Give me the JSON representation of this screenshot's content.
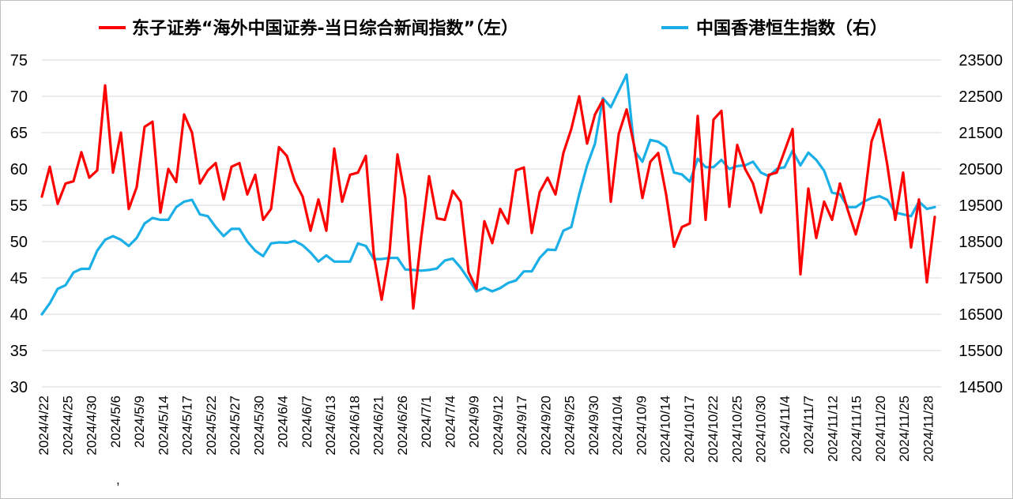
{
  "chart_data": {
    "type": "line",
    "legend_position": "top",
    "grid": "horizontal",
    "series": [
      {
        "name": "东子证券“海外中国证券-当日综合新闻指数”（左）",
        "axis": "left",
        "color": "#ff0000",
        "values": [
          56.2,
          60.3,
          55.2,
          58.0,
          58.3,
          62.3,
          58.8,
          59.8,
          71.5,
          59.5,
          65.0,
          54.5,
          57.5,
          65.8,
          66.5,
          54.0,
          60.0,
          58.2,
          67.5,
          65.0,
          58.0,
          59.8,
          60.8,
          55.8,
          60.3,
          60.8,
          56.5,
          59.2,
          53.0,
          54.5,
          63.0,
          61.8,
          58.3,
          56.2,
          51.5,
          55.8,
          51.5,
          62.8,
          55.5,
          59.2,
          59.5,
          61.8,
          48.2,
          42.0,
          48.5,
          62.0,
          56.0,
          40.8,
          50.5,
          59.0,
          53.2,
          53.0,
          57.0,
          55.5,
          45.8,
          43.5,
          52.8,
          49.8,
          54.5,
          52.5,
          59.8,
          60.2,
          51.2,
          56.8,
          58.8,
          56.5,
          62.2,
          65.5,
          70.0,
          63.5,
          67.5,
          69.5,
          55.5,
          64.8,
          68.2,
          63.0,
          56.0,
          61.0,
          62.2,
          56.5,
          49.3,
          52.0,
          52.5,
          67.3,
          53.0,
          66.8,
          68.0,
          54.8,
          63.3,
          60.0,
          58.0,
          54.0,
          59.2,
          59.5,
          62.5,
          65.5,
          45.5,
          57.3,
          50.5,
          55.5,
          53.0,
          58.0,
          54.3,
          51.0,
          55.0,
          63.8,
          66.8,
          60.5,
          53.0,
          59.5,
          49.2,
          55.8,
          44.4,
          53.4
        ]
      },
      {
        "name": "中国香港恒生指数（右）",
        "axis": "right",
        "color": "#1aafe6",
        "values": [
          16500,
          16800,
          17200,
          17300,
          17650,
          17750,
          17750,
          18250,
          18550,
          18650,
          18550,
          18380,
          18600,
          19000,
          19150,
          19100,
          19100,
          19450,
          19600,
          19650,
          19250,
          19200,
          18900,
          18650,
          18850,
          18850,
          18500,
          18250,
          18100,
          18450,
          18480,
          18470,
          18520,
          18400,
          18200,
          17950,
          18120,
          17950,
          17950,
          17950,
          18450,
          18380,
          18020,
          18020,
          18050,
          18050,
          17730,
          17720,
          17700,
          17720,
          17760,
          17980,
          18030,
          17780,
          17460,
          17130,
          17230,
          17130,
          17220,
          17360,
          17430,
          17680,
          17680,
          18050,
          18280,
          18270,
          18800,
          18900,
          19800,
          20600,
          21200,
          22450,
          22200,
          22650,
          23100,
          21000,
          20700,
          21300,
          21250,
          21100,
          20400,
          20350,
          20150,
          20780,
          20550,
          20550,
          20750,
          20500,
          20580,
          20600,
          20700,
          20400,
          20300,
          20500,
          20550,
          21000,
          20600,
          20950,
          20750,
          20450,
          19850,
          19800,
          19450,
          19450,
          19600,
          19700,
          19750,
          19650,
          19300,
          19250,
          19200,
          19600,
          19400,
          19450
        ]
      }
    ],
    "y_left": {
      "min": 30,
      "max": 75,
      "ticks": [
        "30",
        "35",
        "40",
        "45",
        "50",
        "55",
        "60",
        "65",
        "70",
        "75"
      ]
    },
    "y_right": {
      "min": 14500,
      "max": 23500,
      "ticks": [
        "14500",
        "15500",
        "16500",
        "17500",
        "18500",
        "19500",
        "20500",
        "21500",
        "22500",
        "23500"
      ]
    },
    "x_tick_labels": [
      "2024/4/22",
      "2024/4/25",
      "2024/4/30",
      "2024/5/6",
      "2024/5/9",
      "2024/5/14",
      "2024/5/17",
      "2024/5/22",
      "2024/5/27",
      "2024/5/30",
      "2024/6/4",
      "2024/6/7",
      "2024/6/13",
      "2024/6/18",
      "2024/6/21",
      "2024/6/26",
      "2024/7/1",
      "2024/7/4",
      "2024/9/9",
      "2024/9/12",
      "2024/9/17",
      "2024/9/20",
      "2024/9/25",
      "2024/9/30",
      "2024/10/4",
      "2024/10/9",
      "2024/10/14",
      "2024/10/17",
      "2024/10/22",
      "2024/10/25",
      "2024/10/30",
      "2024/11/4",
      "2024/11/7",
      "2024/11/12",
      "2024/11/15",
      "2024/11/20",
      "2024/11/25",
      "2024/11/28"
    ],
    "stray_mark": ","
  }
}
